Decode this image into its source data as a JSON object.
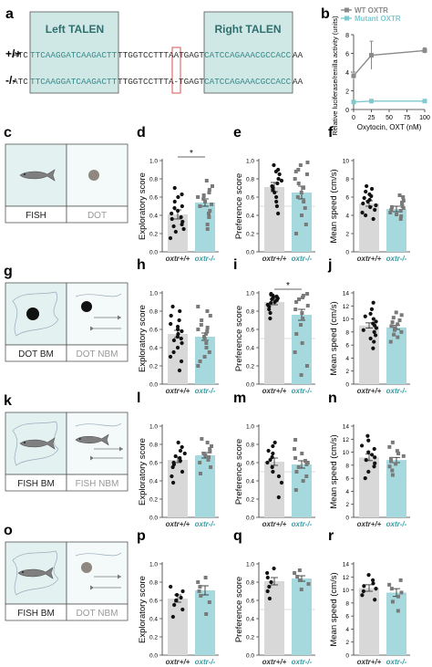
{
  "panel_a": {
    "letter": "a",
    "left_label": "Left TALEN",
    "right_label": "Right TALEN",
    "rows": [
      {
        "genotype": "+/+",
        "p1": "ATC",
        "left": "TTCAAGGATCAAGACTT",
        "mid": "TTGGTCCTTTAAT",
        "right_pre": "GAGT",
        "right": "CATCCAGAAACGCCACC",
        "tail": "AA"
      },
      {
        "genotype": "-/-",
        "p1": "ATC",
        "left": "TTCAAGGATCAAGACTT",
        "mid": "TTGGTCCTTTA",
        "right_pre": "-TGAGT",
        "right": "CATCCAGAAACGCCACC",
        "tail": "AA"
      }
    ],
    "colors": {
      "box": "#cfe8e6",
      "seq_teal": "#3a8a8a",
      "deletion_box": "#d9534f"
    }
  },
  "panel_b": {
    "letter": "b",
    "chart_data": {
      "type": "line",
      "xlabel": "Oxytocin, OXT (nM)",
      "ylabel": "Relative luciferase/renilla activity (units)",
      "x_ticks": [
        0,
        25,
        50,
        75,
        100
      ],
      "y_ticks": [
        0,
        2,
        4,
        6,
        8
      ],
      "xlim": [
        0,
        100
      ],
      "ylim": [
        0,
        8
      ],
      "series": [
        {
          "name": "WT OXTR",
          "color": "#8a8a8a",
          "x": [
            0,
            25,
            100
          ],
          "y": [
            3.6,
            5.8,
            6.3
          ],
          "err": [
            0.4,
            1.5,
            0.3
          ]
        },
        {
          "name": "Mutant OXTR",
          "color": "#7fc9cf",
          "x": [
            0,
            25,
            100
          ],
          "y": [
            0.8,
            0.9,
            0.9
          ],
          "err": [
            0.1,
            0.1,
            0.1
          ]
        }
      ]
    }
  },
  "schematics": [
    {
      "letter": "c",
      "left_label": "FISH",
      "right_label": "DOT",
      "left_content": "fish",
      "right_content": "dot",
      "blob": false
    },
    {
      "letter": "g",
      "left_label": "DOT BM",
      "right_label": "DOT NBM",
      "left_content": "dot-black",
      "right_content": "dot-black-moving",
      "blob": true
    },
    {
      "letter": "k",
      "left_label": "FISH BM",
      "right_label": "FISH NBM",
      "left_content": "fish",
      "right_content": "fish-moving",
      "blob": true
    },
    {
      "letter": "o",
      "left_label": "FISH BM",
      "right_label": "DOT NBM",
      "left_content": "fish-moving",
      "right_content": "dot-moving",
      "blob": true
    }
  ],
  "genotypes": {
    "wt": "oxtr+/+",
    "mut": "oxtr-/-"
  },
  "rows_charts": [
    [
      {
        "letter": "d",
        "chart_data": {
          "type": "bar",
          "ylabel": "Exploratory score",
          "ylim": [
            0,
            1
          ],
          "y_ticks": [
            0,
            0.2,
            0.4,
            0.6,
            0.8,
            1.0
          ],
          "categories": [
            "oxtr+/+",
            "oxtr-/-"
          ],
          "values": [
            0.41,
            0.54
          ],
          "errors": [
            0.05,
            0.04
          ],
          "significance": "*",
          "chance": null,
          "points": [
            [
              0.15,
              0.22,
              0.25,
              0.28,
              0.3,
              0.33,
              0.36,
              0.38,
              0.42,
              0.45,
              0.48,
              0.5,
              0.55,
              0.6,
              0.63,
              0.7
            ],
            [
              0.25,
              0.3,
              0.38,
              0.42,
              0.45,
              0.5,
              0.52,
              0.55,
              0.58,
              0.6,
              0.62,
              0.65,
              0.68,
              0.72,
              0.78
            ]
          ]
        }
      },
      {
        "letter": "e",
        "chart_data": {
          "type": "bar",
          "ylabel": "Preference score",
          "ylim": [
            0,
            1
          ],
          "y_ticks": [
            0,
            0.2,
            0.4,
            0.6,
            0.8,
            1.0
          ],
          "categories": [
            "oxtr+/+",
            "oxtr-/-"
          ],
          "values": [
            0.71,
            0.65
          ],
          "errors": [
            0.05,
            0.07
          ],
          "significance": "",
          "chance": 0.5,
          "points": [
            [
              0.42,
              0.5,
              0.55,
              0.6,
              0.65,
              0.68,
              0.7,
              0.72,
              0.75,
              0.78,
              0.8,
              0.85,
              0.88,
              0.9,
              0.95
            ],
            [
              0.2,
              0.3,
              0.4,
              0.48,
              0.55,
              0.6,
              0.65,
              0.7,
              0.75,
              0.8,
              0.85,
              0.88,
              0.9,
              0.95,
              0.98
            ]
          ]
        }
      },
      {
        "letter": "f",
        "chart_data": {
          "type": "bar",
          "ylabel": "Mean speed (cm/s)",
          "ylim": [
            0,
            10
          ],
          "y_ticks": [
            0,
            2,
            4,
            6,
            8,
            10
          ],
          "categories": [
            "oxtr+/+",
            "oxtr-/-"
          ],
          "values": [
            5.3,
            4.7
          ],
          "errors": [
            0.3,
            0.3
          ],
          "significance": "",
          "chance": null,
          "points": [
            [
              3.6,
              4.0,
              4.3,
              4.6,
              4.9,
              5.1,
              5.3,
              5.5,
              5.7,
              5.9,
              6.1,
              6.3,
              6.6,
              6.9,
              7.2
            ],
            [
              3.6,
              3.9,
              4.1,
              4.3,
              4.5,
              4.6,
              4.8,
              4.9,
              5.0,
              5.2,
              5.4,
              5.6,
              6.0,
              6.2
            ]
          ]
        }
      }
    ],
    [
      {
        "letter": "h",
        "chart_data": {
          "type": "bar",
          "ylabel": "Exploratory score",
          "ylim": [
            0,
            1
          ],
          "y_ticks": [
            0,
            0.2,
            0.4,
            0.6,
            0.8,
            1.0
          ],
          "categories": [
            "oxtr+/+",
            "oxtr-/-"
          ],
          "values": [
            0.55,
            0.52
          ],
          "errors": [
            0.04,
            0.04
          ],
          "significance": "",
          "chance": null,
          "points": [
            [
              0.15,
              0.25,
              0.3,
              0.35,
              0.4,
              0.45,
              0.48,
              0.5,
              0.52,
              0.55,
              0.58,
              0.6,
              0.63,
              0.66,
              0.7,
              0.75,
              0.8,
              0.85
            ],
            [
              0.2,
              0.25,
              0.3,
              0.35,
              0.4,
              0.45,
              0.5,
              0.52,
              0.55,
              0.58,
              0.6,
              0.62,
              0.65,
              0.7,
              0.75,
              0.8,
              0.85
            ]
          ]
        }
      },
      {
        "letter": "i",
        "chart_data": {
          "type": "bar",
          "ylabel": "Preference score",
          "ylim": [
            0,
            1
          ],
          "y_ticks": [
            0,
            0.2,
            0.4,
            0.6,
            0.8,
            1.0
          ],
          "categories": [
            "oxtr+/+",
            "oxtr-/-"
          ],
          "values": [
            0.9,
            0.76
          ],
          "errors": [
            0.03,
            0.06
          ],
          "significance": "*",
          "chance": 0.5,
          "points": [
            [
              0.72,
              0.78,
              0.82,
              0.85,
              0.87,
              0.89,
              0.9,
              0.92,
              0.93,
              0.94,
              0.95,
              0.96,
              0.97,
              0.98,
              0.99
            ],
            [
              0.1,
              0.2,
              0.35,
              0.45,
              0.55,
              0.65,
              0.72,
              0.78,
              0.82,
              0.86,
              0.9,
              0.93,
              0.95,
              0.97,
              0.99
            ]
          ]
        }
      },
      {
        "letter": "j",
        "chart_data": {
          "type": "bar",
          "ylabel": "Mean speed (cm/s)",
          "ylim": [
            0,
            14
          ],
          "y_ticks": [
            0,
            2,
            4,
            6,
            8,
            10,
            12,
            14
          ],
          "categories": [
            "oxtr+/+",
            "oxtr-/-"
          ],
          "values": [
            9.0,
            8.7
          ],
          "errors": [
            0.4,
            0.3
          ],
          "significance": "",
          "chance": null,
          "points": [
            [
              5.5,
              6.5,
              7.0,
              7.5,
              8.0,
              8.3,
              8.6,
              9.0,
              9.3,
              9.6,
              10.0,
              10.4,
              10.8,
              11.5,
              12.5
            ],
            [
              6.5,
              7.2,
              7.6,
              8.0,
              8.3,
              8.6,
              8.9,
              9.2,
              9.5,
              9.8,
              10.2,
              10.6,
              11.0
            ]
          ]
        }
      }
    ],
    [
      {
        "letter": "l",
        "chart_data": {
          "type": "bar",
          "ylabel": "Exploratory score",
          "ylim": [
            0,
            1
          ],
          "y_ticks": [
            0,
            0.2,
            0.4,
            0.6,
            0.8,
            1.0
          ],
          "categories": [
            "oxtr+/+",
            "oxtr-/-"
          ],
          "values": [
            0.63,
            0.68
          ],
          "errors": [
            0.03,
            0.03
          ],
          "significance": "",
          "chance": null,
          "points": [
            [
              0.38,
              0.45,
              0.5,
              0.55,
              0.58,
              0.6,
              0.62,
              0.65,
              0.67,
              0.7,
              0.73,
              0.77,
              0.82
            ],
            [
              0.48,
              0.55,
              0.6,
              0.63,
              0.66,
              0.68,
              0.7,
              0.72,
              0.75,
              0.78,
              0.82,
              0.86
            ]
          ]
        }
      },
      {
        "letter": "m",
        "chart_data": {
          "type": "bar",
          "ylabel": "Preference score",
          "ylim": [
            0,
            1
          ],
          "y_ticks": [
            0,
            0.2,
            0.4,
            0.6,
            0.8,
            1.0
          ],
          "categories": [
            "oxtr+/+",
            "oxtr-/-"
          ],
          "values": [
            0.61,
            0.58
          ],
          "errors": [
            0.04,
            0.04
          ],
          "significance": "",
          "chance": 0.5,
          "points": [
            [
              0.22,
              0.38,
              0.45,
              0.5,
              0.55,
              0.6,
              0.63,
              0.66,
              0.7,
              0.73,
              0.78,
              0.82
            ],
            [
              0.3,
              0.4,
              0.45,
              0.5,
              0.55,
              0.58,
              0.6,
              0.62,
              0.65,
              0.7,
              0.75,
              0.85
            ]
          ]
        }
      },
      {
        "letter": "n",
        "chart_data": {
          "type": "bar",
          "ylabel": "Mean speed (cm/s)",
          "ylim": [
            0,
            14
          ],
          "y_ticks": [
            0,
            2,
            4,
            6,
            8,
            10,
            12,
            14
          ],
          "categories": [
            "oxtr+/+",
            "oxtr-/-"
          ],
          "values": [
            9.2,
            8.8
          ],
          "errors": [
            0.5,
            0.4
          ],
          "significance": "",
          "chance": null,
          "points": [
            [
              6.0,
              7.0,
              7.8,
              8.3,
              8.8,
              9.2,
              9.6,
              10.0,
              10.5,
              11.0,
              11.8,
              12.5
            ],
            [
              6.5,
              7.2,
              7.8,
              8.2,
              8.6,
              9.0,
              9.4,
              9.8,
              10.2,
              10.8,
              11.5
            ]
          ]
        }
      }
    ],
    [
      {
        "letter": "p",
        "chart_data": {
          "type": "bar",
          "ylabel": "Exploratory score",
          "ylim": [
            0,
            1
          ],
          "y_ticks": [
            0,
            0.2,
            0.4,
            0.6,
            0.8,
            1.0
          ],
          "categories": [
            "oxtr+/+",
            "oxtr-/-"
          ],
          "values": [
            0.62,
            0.71
          ],
          "errors": [
            0.04,
            0.05
          ],
          "significance": "",
          "chance": null,
          "points": [
            [
              0.42,
              0.5,
              0.55,
              0.6,
              0.63,
              0.66,
              0.7,
              0.75
            ],
            [
              0.45,
              0.58,
              0.65,
              0.7,
              0.75,
              0.8,
              0.85
            ]
          ]
        }
      },
      {
        "letter": "q",
        "chart_data": {
          "type": "bar",
          "ylabel": "Preference score",
          "ylim": [
            0,
            1
          ],
          "y_ticks": [
            0,
            0.2,
            0.4,
            0.6,
            0.8,
            1.0
          ],
          "categories": [
            "oxtr+/+",
            "oxtr-/-"
          ],
          "values": [
            0.81,
            0.84
          ],
          "errors": [
            0.04,
            0.03
          ],
          "significance": "",
          "chance": 0.5,
          "points": [
            [
              0.62,
              0.7,
              0.75,
              0.8,
              0.85,
              0.9,
              0.95
            ],
            [
              0.72,
              0.78,
              0.82,
              0.86,
              0.9,
              0.93
            ]
          ]
        }
      },
      {
        "letter": "r",
        "chart_data": {
          "type": "bar",
          "ylabel": "Mean speed (cm/s)",
          "ylim": [
            0,
            14
          ],
          "y_ticks": [
            0,
            2,
            4,
            6,
            8,
            10,
            12,
            14
          ],
          "categories": [
            "oxtr+/+",
            "oxtr-/-"
          ],
          "values": [
            10.3,
            9.6
          ],
          "errors": [
            0.5,
            0.6
          ],
          "significance": "",
          "chance": null,
          "points": [
            [
              8.5,
              9.2,
              9.8,
              10.2,
              10.6,
              11.0,
              11.5,
              12.3
            ],
            [
              6.8,
              8.2,
              9.0,
              9.6,
              10.2,
              10.8,
              11.5
            ]
          ]
        }
      }
    ]
  ],
  "colors": {
    "wt_bar": "#d8d8d8",
    "mut_bar": "#a6d9dd",
    "wt_pt": "#111111",
    "mut_pt": "#7a7a7a",
    "mut_label": "#3a9aa0",
    "schematic_left": "#e4f1f1",
    "schematic_right": "#f4fafa"
  }
}
